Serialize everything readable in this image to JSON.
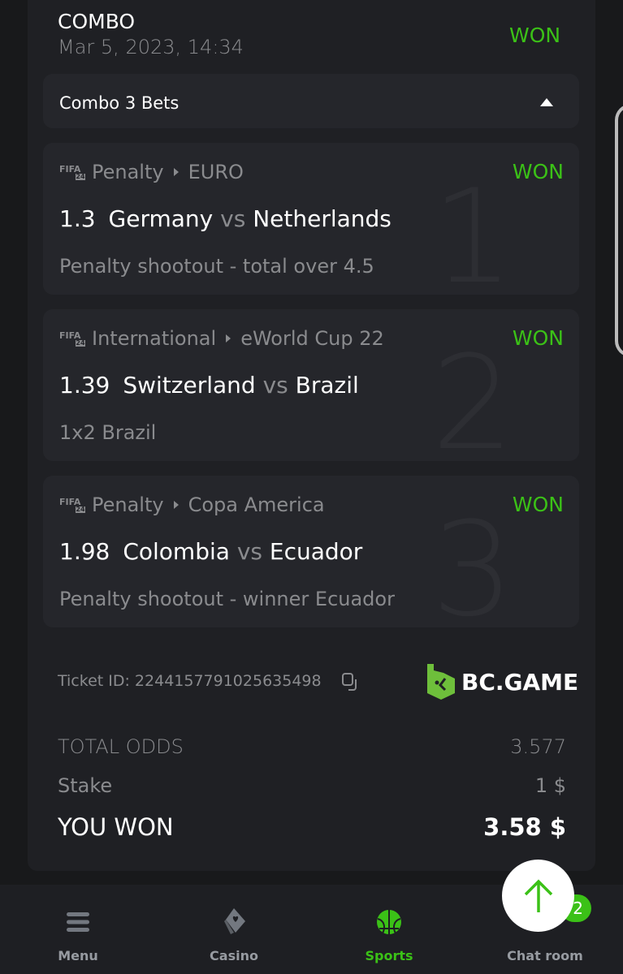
{
  "header": {
    "title": "COMBO",
    "date": "Mar 5, 2023, 14:34",
    "status": "WON"
  },
  "combo": {
    "label": "Combo 3 Bets",
    "toggle_icon": "caret-up-icon"
  },
  "bets": [
    {
      "index": "1",
      "game": "FIFA 24",
      "category": "Penalty",
      "league": "EURO",
      "status": "WON",
      "odds": "1.3",
      "home": "Germany",
      "vs": "vs",
      "away": "Netherlands",
      "market": "Penalty shootout - total over 4.5"
    },
    {
      "index": "2",
      "game": "FIFA 24",
      "category": "International",
      "league": "eWorld Cup 22",
      "status": "WON",
      "odds": "1.39",
      "home": "Switzerland",
      "vs": "vs",
      "away": "Brazil",
      "market": "1x2 Brazil"
    },
    {
      "index": "3",
      "game": "FIFA 24",
      "category": "Penalty",
      "league": "Copa America",
      "status": "WON",
      "odds": "1.98",
      "home": "Colombia",
      "vs": "vs",
      "away": "Ecuador",
      "market": "Penalty shootout - winner Ecuador"
    }
  ],
  "ticket": {
    "label": "Ticket ID: 2244157791025635498",
    "brand": "BC.GAME"
  },
  "summary": {
    "total_odds_label": "TOTAL ODDS",
    "total_odds": "3.577",
    "stake_label": "Stake",
    "stake": "1 $",
    "won_label": "YOU WON",
    "won": "3.58 $"
  },
  "nav": {
    "items": [
      {
        "label": "Menu",
        "icon": "menu-icon"
      },
      {
        "label": "Casino",
        "icon": "cards-icon"
      },
      {
        "label": "Sports",
        "icon": "basketball-icon",
        "active": true
      },
      {
        "label": "Chat room",
        "icon": "chat-icon"
      }
    ],
    "chat_badge": "2"
  },
  "colors": {
    "accent": "#3bc117",
    "bg": "#18191b",
    "card": "#1f2024",
    "inner": "#25262b"
  }
}
